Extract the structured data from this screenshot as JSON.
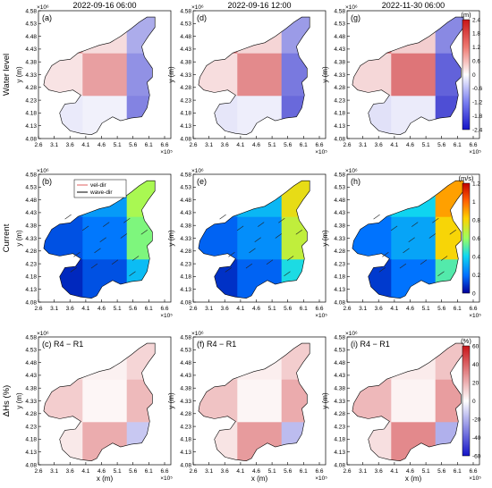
{
  "chart_data": {
    "type": "heatmap",
    "columns": [
      "2022-09-16 06:00",
      "2022-09-16 12:00",
      "2022-11-30 06:00"
    ],
    "rows": [
      {
        "label": "Water level",
        "panels": [
          "(a)",
          "(d)",
          "(g)"
        ],
        "colorbar": {
          "unit": "(m)",
          "ticks": [
            "2.4",
            "1.8",
            "1.2",
            "0.6",
            "0",
            "-0.6",
            "-1.2",
            "-1.8",
            "-2.4"
          ],
          "range": [
            -2.4,
            2.4
          ]
        }
      },
      {
        "label": "Current",
        "panels": [
          "(b)",
          "(e)",
          "(h)"
        ],
        "colorbar": {
          "unit": "(m/s)",
          "ticks": [
            "1.2",
            "1",
            "0.8",
            "0.6",
            "0.4",
            "0.2",
            "0"
          ],
          "range": [
            0,
            1.2
          ]
        },
        "legend": [
          "vel-dir",
          "wave-dir"
        ]
      },
      {
        "label": "ΔHs (%)",
        "panels": [
          "(c) R4 − R1",
          "(f) R4 − R1",
          "(i) R4 − R1"
        ],
        "colorbar": {
          "unit": "(%)",
          "ticks": [
            "60",
            "40",
            "20",
            "0",
            "-20",
            "-40",
            "-60"
          ],
          "range": [
            -60,
            60
          ]
        }
      }
    ],
    "ylabel": "y (m)",
    "xlabel": "x (m)",
    "y_exponent": "×10⁶",
    "x_exponent": "×10⁵",
    "yticks": [
      "4.58",
      "4.53",
      "4.48",
      "4.43",
      "4.38",
      "4.33",
      "4.28",
      "4.23",
      "4.18",
      "4.13",
      "4.08"
    ],
    "ylim": [
      4.08,
      4.58
    ],
    "xticks": [
      "2.6",
      "3.1",
      "3.6",
      "4.1",
      "4.6",
      "5.1",
      "5.6",
      "6.1",
      "6.6"
    ],
    "xlim": [
      2.6,
      6.8
    ],
    "panel_values": {
      "water_level_m": [
        [
          1.6,
          0.5,
          -1.2
        ],
        [
          0.4,
          1.4,
          -1.6
        ],
        [
          -0.3,
          -0.2,
          -1.8
        ]
      ],
      "current_ms": [
        [
          0.3,
          0.4,
          0.9
        ],
        [
          0.2,
          0.3,
          0.8
        ],
        [
          0.1,
          0.2,
          0.5
        ]
      ],
      "delta_hs_pct": [
        [
          12,
          5,
          15
        ],
        [
          18,
          3,
          25
        ],
        [
          8,
          30,
          -20
        ]
      ]
    },
    "grid": false
  }
}
